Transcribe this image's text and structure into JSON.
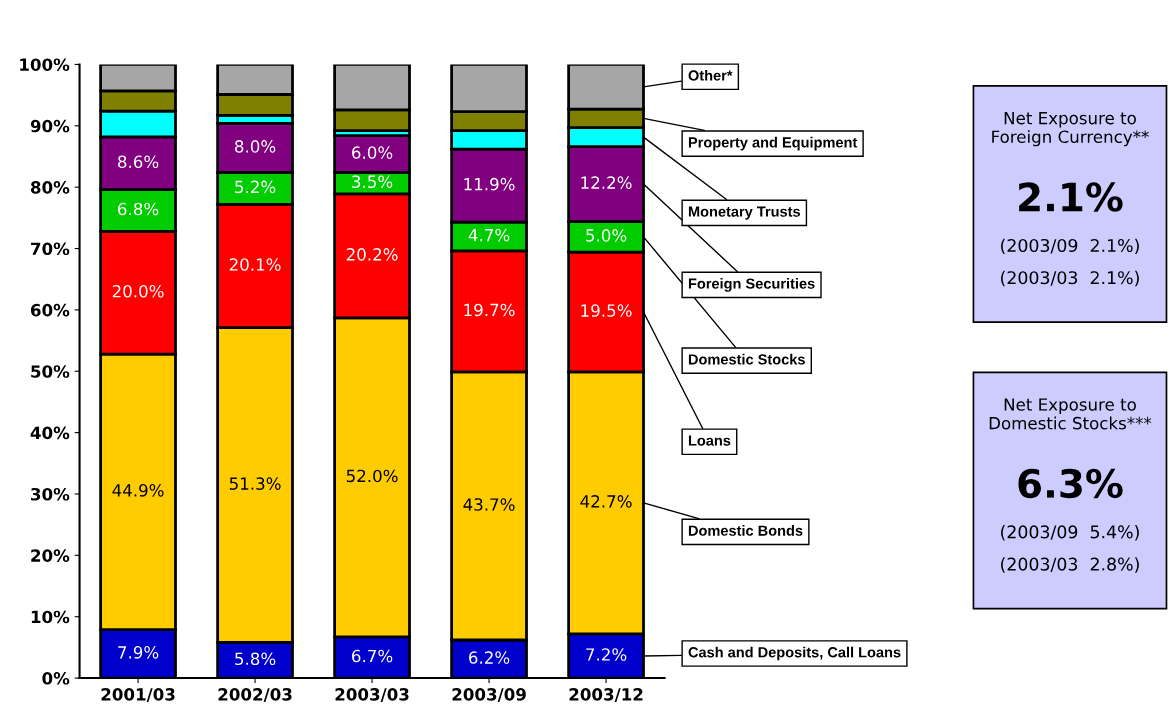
{
  "chart_data": {
    "type": "bar",
    "stacked": true,
    "categories": [
      "2001/03",
      "2002/03",
      "2003/03",
      "2003/09",
      "2003/12"
    ],
    "series": [
      {
        "name": "Cash and Deposits, Call Loans",
        "color": "#0000cc",
        "values": [
          7.9,
          5.8,
          6.7,
          6.2,
          7.2
        ],
        "value_labels": [
          "7.9%",
          "5.8%",
          "6.7%",
          "6.2%",
          "7.2%"
        ]
      },
      {
        "name": "Domestic Bonds",
        "color": "#ffcc00",
        "values": [
          44.9,
          51.3,
          52.0,
          43.7,
          42.7
        ],
        "value_labels": [
          "44.9%",
          "51.3%",
          "52.0%",
          "43.7%",
          "42.7%"
        ]
      },
      {
        "name": "Loans",
        "color": "#ff0000",
        "values": [
          20.0,
          20.1,
          20.2,
          19.7,
          19.5
        ],
        "value_labels": [
          "20.0%",
          "20.1%",
          "20.2%",
          "19.7%",
          "19.5%"
        ]
      },
      {
        "name": "Domestic Stocks",
        "color": "#00cc00",
        "values": [
          6.8,
          5.2,
          3.5,
          4.7,
          5.0
        ],
        "value_labels": [
          "6.8%",
          "5.2%",
          "3.5%",
          "4.7%",
          "5.0%"
        ]
      },
      {
        "name": "Foreign Securities",
        "color": "#800080",
        "values": [
          8.6,
          8.0,
          6.0,
          11.9,
          12.2
        ],
        "value_labels": [
          "8.6%",
          "8.0%",
          "6.0%",
          "11.9%",
          "12.2%"
        ]
      },
      {
        "name": "Monetary Trusts",
        "color": "#00ffff",
        "values": [
          4.2,
          1.3,
          0.8,
          3.0,
          3.1
        ]
      },
      {
        "name": "Property and Equipment",
        "color": "#808000",
        "values": [
          3.3,
          3.4,
          3.4,
          3.1,
          3.0
        ]
      },
      {
        "name": "Other*",
        "color": "#a6a6a6",
        "values": [
          4.3,
          4.9,
          7.4,
          7.7,
          7.3
        ]
      }
    ],
    "ylim": [
      0,
      100
    ],
    "yticks": [
      {
        "value": 0,
        "label": "0%"
      },
      {
        "value": 10,
        "label": "10%"
      },
      {
        "value": 20,
        "label": "20%"
      },
      {
        "value": 30,
        "label": "30%"
      },
      {
        "value": 40,
        "label": "40%"
      },
      {
        "value": 50,
        "label": "50%"
      },
      {
        "value": 60,
        "label": "60%"
      },
      {
        "value": 70,
        "label": "70%"
      },
      {
        "value": 80,
        "label": "80%"
      },
      {
        "value": 90,
        "label": "90%"
      },
      {
        "value": 100,
        "label": "100%"
      }
    ],
    "grid": false,
    "legend": "right",
    "annotations": [
      "Net Exposure to Foreign Currency**",
      "2.1%",
      "(2003/09  2.1%)",
      "(2003/03  2.1%)",
      "Net Exposure to Domestic Stocks***",
      "6.3%",
      "(2003/09  5.4%)",
      "(2003/03  2.8%)"
    ]
  }
}
